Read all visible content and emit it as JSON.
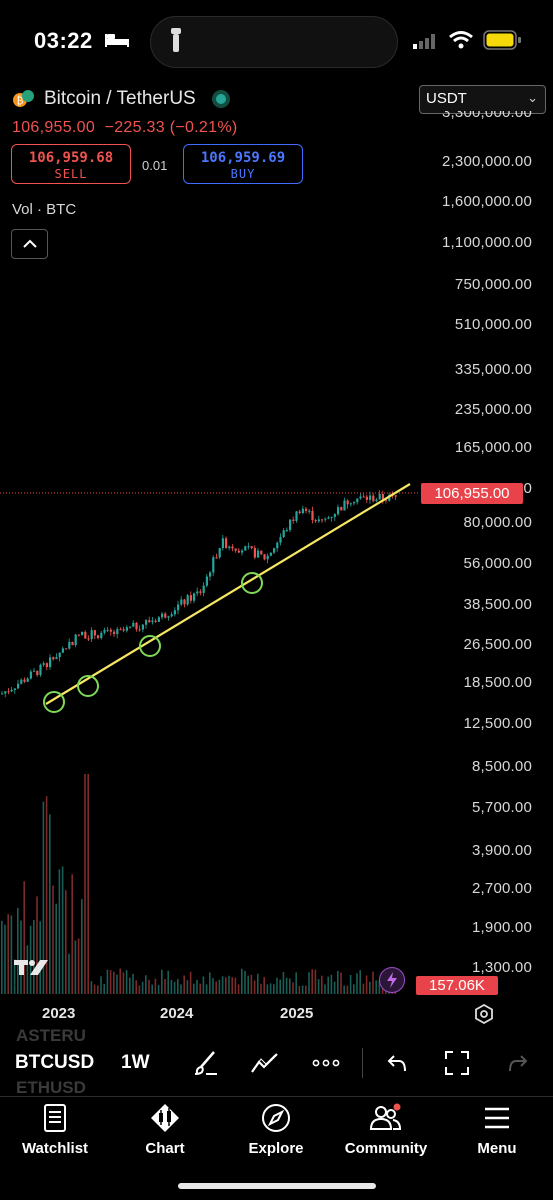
{
  "status_bar": {
    "time": "03:22"
  },
  "header": {
    "symbol_title": "Bitcoin / TetherUS",
    "last_price": "106,955.00",
    "change": "−225.33 (−0.21%)",
    "sell_price": "106,959.68",
    "sell_label": "SELL",
    "spread": "0.01",
    "buy_price": "106,959.69",
    "buy_label": "BUY",
    "volume_label": "Vol · BTC",
    "currency": "USDT"
  },
  "price_axis": {
    "labels": [
      "3,300,000.00",
      "2,300,000.00",
      "1,600,000.00",
      "1,100,000.00",
      "750,000.00",
      "510,000.00",
      "335,000.00",
      "235,000.00",
      "165,000.00",
      "115,000.00",
      "80,000.00",
      "56,000.00",
      "38,500.00",
      "26,500.00",
      "18,500.00",
      "12,500.00",
      "8,500.00",
      "5,700.00",
      "3,900.00",
      "2,700.00",
      "1,900.00",
      "1,300.00"
    ],
    "current_price_tag": "106,955.00",
    "volume_tag": "157.06K"
  },
  "time_axis": {
    "labels": [
      "2023",
      "2024",
      "2025"
    ]
  },
  "watermark_text": "17",
  "toolbar": {
    "ghost_symbol_top": "ASTERU",
    "ghost_symbol_bottom": "ETHUSD",
    "ticker": "BTCUSD",
    "interval": "1W"
  },
  "tabs": [
    {
      "label": "Watchlist",
      "icon": "document-list-icon"
    },
    {
      "label": "Chart",
      "icon": "candlestick-chart-icon"
    },
    {
      "label": "Explore",
      "icon": "compass-icon"
    },
    {
      "label": "Community",
      "icon": "people-icon"
    },
    {
      "label": "Menu",
      "icon": "hamburger-menu-icon"
    }
  ],
  "colors": {
    "up": "#26a69a",
    "down": "#ef5350",
    "trendline": "#f5e663",
    "marker": "#7ed957",
    "accent": "#e8434a"
  },
  "chart_data": {
    "type": "candlestick",
    "symbol": "BTCUSDT",
    "interval": "1W",
    "scale": "log",
    "x": [
      "2022-11",
      "2023-01",
      "2023-04",
      "2023-07",
      "2023-10",
      "2024-01",
      "2024-03",
      "2024-06",
      "2024-09",
      "2024-12",
      "2025-03",
      "2025-05",
      "2025-07"
    ],
    "close": [
      16500,
      21000,
      29000,
      29500,
      34500,
      44000,
      70000,
      64000,
      60000,
      98000,
      84000,
      106000,
      107000
    ],
    "trendline_touches": [
      15500,
      18000,
      26500,
      52000
    ],
    "last_price": 106955,
    "ylim": [
      1300,
      3300000
    ]
  }
}
